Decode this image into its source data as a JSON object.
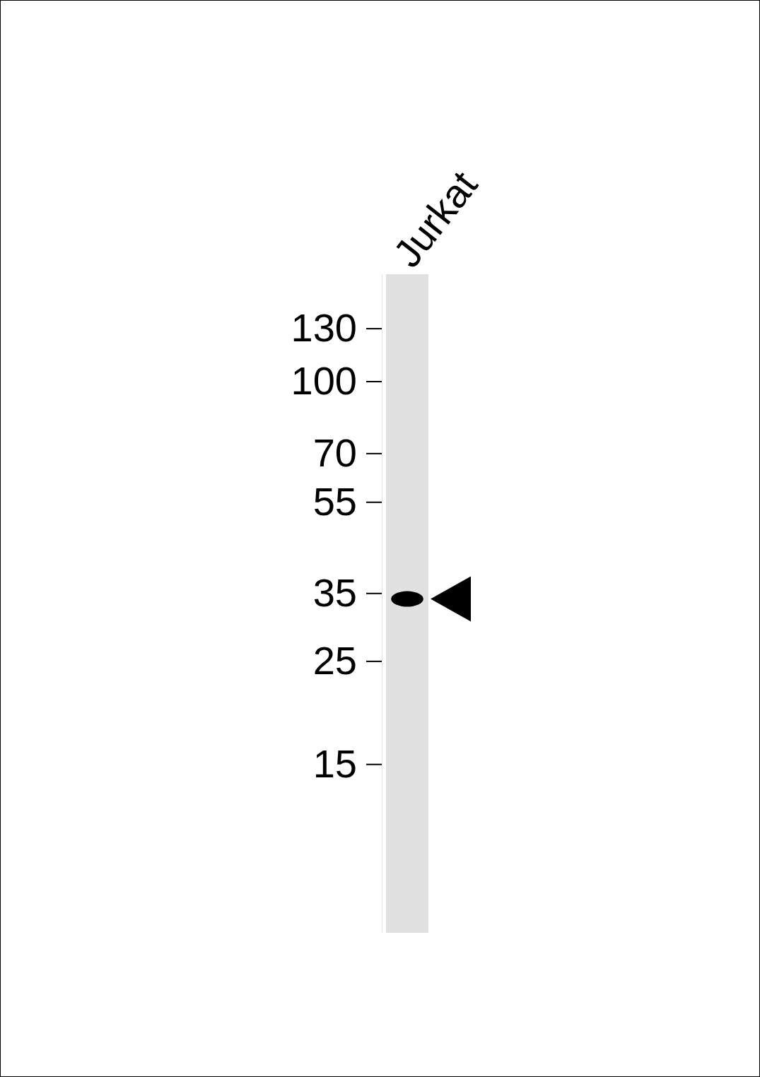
{
  "chart_data": {
    "type": "western_blot",
    "categories": [
      "Jurkat"
    ],
    "values": [
      34
    ],
    "color": "#000000",
    "log": "y",
    "ylim": [
      6.5,
      170
    ],
    "yticks": [
      130,
      100,
      70,
      55,
      35,
      25,
      15
    ]
  }
}
